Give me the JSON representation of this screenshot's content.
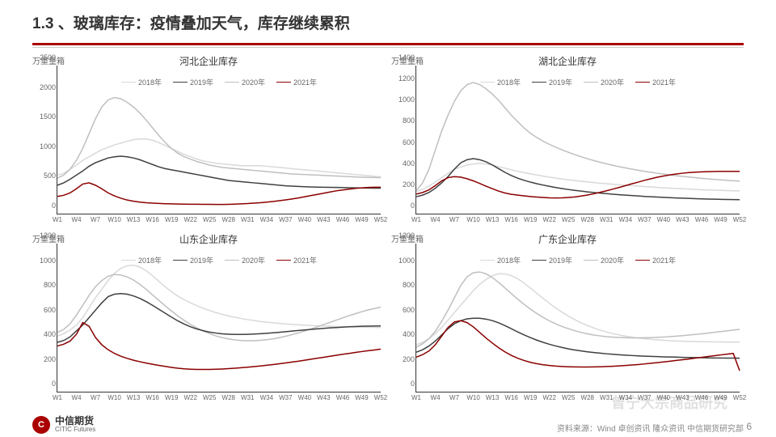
{
  "header": {
    "title": "1.3 、玻璃库存：疫情叠加天气，库存继续累积"
  },
  "legend_labels": [
    "2018年",
    "2019年",
    "2020年",
    "2021年"
  ],
  "series_colors": {
    "y2018": "#d9d9d9",
    "y2019": "#404040",
    "y2020": "#bfbfbf",
    "y2021": "#8b0000"
  },
  "line_width": 1.5,
  "x_ticks": [
    "W1",
    "W4",
    "W7",
    "W10",
    "W13",
    "W16",
    "W19",
    "W22",
    "W25",
    "W28",
    "W31",
    "W34",
    "W37",
    "W40",
    "W43",
    "W46",
    "W49",
    "W52"
  ],
  "charts": [
    {
      "title": "河北企业库存",
      "y_label": "万重量箱",
      "ymin": 0,
      "ymax": 2500,
      "y_step": 500,
      "series": {
        "y2018": [
          650,
          680,
          750,
          820,
          900,
          960,
          1020,
          1080,
          1120,
          1160,
          1190,
          1220,
          1250,
          1260,
          1260,
          1240,
          1200,
          1150,
          1100,
          1050,
          1000,
          960,
          920,
          890,
          870,
          850,
          840,
          830,
          820,
          810,
          810,
          810,
          810,
          800,
          790,
          780,
          770,
          760,
          750,
          740,
          730,
          720,
          710,
          700,
          690,
          680,
          670,
          660,
          650,
          640,
          630,
          620
        ],
        "y2019": [
          480,
          520,
          580,
          650,
          720,
          800,
          860,
          900,
          940,
          960,
          970,
          960,
          940,
          910,
          870,
          830,
          790,
          760,
          740,
          720,
          700,
          680,
          660,
          640,
          620,
          600,
          580,
          560,
          550,
          540,
          530,
          520,
          510,
          500,
          490,
          480,
          470,
          465,
          460,
          455,
          450,
          448,
          446,
          444,
          442,
          440,
          438,
          436,
          434,
          432,
          430,
          430
        ],
        "y2020": [
          600,
          650,
          750,
          900,
          1100,
          1350,
          1600,
          1800,
          1920,
          1960,
          1940,
          1880,
          1800,
          1700,
          1580,
          1450,
          1320,
          1200,
          1100,
          1020,
          960,
          920,
          880,
          850,
          820,
          800,
          780,
          770,
          760,
          750,
          740,
          730,
          720,
          710,
          700,
          690,
          680,
          670,
          665,
          660,
          655,
          650,
          645,
          640,
          635,
          630,
          625,
          620,
          615,
          612,
          610,
          608
        ],
        "y2021": [
          290,
          310,
          350,
          420,
          500,
          520,
          480,
          420,
          350,
          300,
          260,
          230,
          210,
          195,
          185,
          178,
          172,
          168,
          165,
          162,
          160,
          159,
          158,
          157,
          157,
          156,
          156,
          157,
          160,
          165,
          170,
          178,
          185,
          195,
          205,
          218,
          232,
          248,
          265,
          285,
          305,
          325,
          345,
          365,
          385,
          400,
          414,
          426,
          436,
          442,
          445,
          445
        ]
      }
    },
    {
      "title": "湖北企业库存",
      "y_label": "万重量箱",
      "ymin": 0,
      "ymax": 1400,
      "y_step": 200,
      "series": {
        "y2018": [
          210,
          230,
          260,
          300,
          340,
          380,
          420,
          440,
          460,
          470,
          475,
          470,
          460,
          445,
          430,
          415,
          400,
          388,
          376,
          365,
          355,
          345,
          336,
          328,
          320,
          313,
          306,
          300,
          294,
          288,
          283,
          278,
          273,
          268,
          264,
          260,
          256,
          252,
          248,
          244,
          241,
          238,
          235,
          232,
          229,
          226,
          224,
          222,
          220,
          218,
          216,
          215
        ],
        "y2019": [
          160,
          175,
          200,
          240,
          290,
          350,
          420,
          480,
          510,
          520,
          510,
          490,
          460,
          425,
          390,
          360,
          335,
          315,
          298,
          283,
          270,
          258,
          247,
          237,
          228,
          220,
          213,
          206,
          200,
          194,
          189,
          184,
          179,
          175,
          171,
          167,
          163,
          160,
          157,
          154,
          151,
          148,
          146,
          144,
          142,
          140,
          138,
          137,
          135,
          134,
          133,
          132
        ],
        "y2020": [
          220,
          290,
          420,
          600,
          780,
          930,
          1060,
          1160,
          1220,
          1240,
          1220,
          1180,
          1130,
          1070,
          1000,
          930,
          870,
          810,
          760,
          720,
          685,
          655,
          628,
          603,
          580,
          558,
          538,
          519,
          502,
          486,
          471,
          457,
          444,
          432,
          421,
          410,
          400,
          391,
          382,
          374,
          366,
          359,
          352,
          346,
          340,
          334,
          329,
          324,
          319,
          315,
          311,
          308
        ],
        "y2021": [
          185,
          200,
          225,
          265,
          310,
          340,
          350,
          345,
          330,
          310,
          285,
          260,
          236,
          213,
          195,
          183,
          175,
          168,
          162,
          157,
          153,
          149,
          148,
          149,
          153,
          158,
          166,
          176,
          188,
          202,
          216,
          232,
          248,
          265,
          282,
          298,
          315,
          330,
          344,
          356,
          366,
          375,
          382,
          388,
          392,
          395,
          397,
          399,
          400,
          400,
          400,
          400
        ]
      }
    },
    {
      "title": "山东企业库存",
      "y_label": "万重量箱",
      "ymin": 0,
      "ymax": 1200,
      "y_step": 200,
      "series": {
        "y2018": [
          450,
          470,
          500,
          540,
          600,
          680,
          760,
          830,
          900,
          960,
          1000,
          1020,
          1025,
          1010,
          980,
          940,
          895,
          850,
          810,
          775,
          745,
          720,
          697,
          676,
          658,
          641,
          627,
          614,
          603,
          593,
          584,
          576,
          569,
          563,
          558,
          553,
          549,
          545,
          542,
          539,
          536,
          534,
          532,
          530,
          528,
          527,
          525,
          524,
          523,
          522,
          521,
          520
        ],
        "y2019": [
          400,
          415,
          444,
          492,
          540,
          600,
          660,
          720,
          770,
          790,
          795,
          790,
          776,
          756,
          730,
          700,
          668,
          636,
          604,
          574,
          548,
          526,
          508,
          494,
          483,
          475,
          469,
          466,
          464,
          464,
          465,
          467,
          470,
          473,
          477,
          481,
          486,
          491,
          496,
          500,
          505,
          509,
          513,
          517,
          520,
          523,
          526,
          528,
          530,
          531,
          532,
          533
        ],
        "y2020": [
          480,
          505,
          550,
          620,
          700,
          780,
          850,
          900,
          935,
          950,
          945,
          930,
          905,
          870,
          830,
          785,
          740,
          696,
          654,
          614,
          578,
          545,
          516,
          491,
          470,
          452,
          438,
          427,
          420,
          415,
          413,
          413,
          416,
          421,
          428,
          438,
          449,
          462,
          476,
          492,
          508,
          526,
          544,
          562,
          580,
          598,
          616,
          632,
          648,
          662,
          674,
          685
        ],
        "y2021": [
          370,
          385,
          410,
          465,
          560,
          530,
          440,
          380,
          340,
          310,
          287,
          270,
          255,
          243,
          232,
          222,
          213,
          205,
          197,
          190,
          185,
          182,
          180,
          180,
          180,
          182,
          184,
          187,
          190,
          194,
          198,
          203,
          208,
          214,
          220,
          226,
          233,
          240,
          247,
          255,
          263,
          271,
          279,
          287,
          295,
          303,
          310,
          318,
          325,
          332,
          338,
          345
        ]
      }
    },
    {
      "title": "广东企业库存",
      "y_label": "万重量箱",
      "ymin": 0,
      "ymax": 1200,
      "y_step": 200,
      "series": {
        "y2018": [
          380,
          400,
          430,
          470,
          520,
          580,
          640,
          700,
          760,
          820,
          870,
          910,
          940,
          955,
          955,
          940,
          915,
          880,
          840,
          798,
          756,
          716,
          678,
          644,
          612,
          584,
          558,
          536,
          516,
          499,
          484,
          471,
          460,
          450,
          442,
          435,
          429,
          424,
          420,
          416,
          413,
          411,
          409,
          407,
          406,
          405,
          404,
          403,
          403,
          402,
          402,
          402
        ],
        "y2019": [
          320,
          340,
          370,
          410,
          460,
          510,
          550,
          575,
          590,
          595,
          595,
          588,
          576,
          558,
          535,
          510,
          484,
          460,
          438,
          418,
          400,
          384,
          370,
          358,
          347,
          338,
          330,
          323,
          317,
          312,
          307,
          303,
          299,
          296,
          293,
          290,
          288,
          286,
          284,
          282,
          281,
          280,
          278,
          277,
          276,
          275,
          274,
          273,
          273,
          272,
          272,
          271
        ],
        "y2020": [
          360,
          388,
          430,
          490,
          570,
          660,
          760,
          860,
          930,
          965,
          970,
          955,
          925,
          885,
          840,
          795,
          750,
          708,
          669,
          634,
          602,
          574,
          550,
          528,
          510,
          494,
          480,
          469,
          459,
          452,
          446,
          442,
          439,
          437,
          436,
          436,
          437,
          438,
          440,
          443,
          446,
          450,
          454,
          459,
          464,
          469,
          475,
          481,
          487,
          493,
          499,
          505
        ],
        "y2021": [
          280,
          300,
          330,
          380,
          450,
          520,
          565,
          575,
          560,
          525,
          480,
          435,
          394,
          356,
          322,
          294,
          271,
          253,
          238,
          227,
          218,
          212,
          207,
          204,
          202,
          201,
          200,
          200,
          201,
          202,
          204,
          206,
          209,
          212,
          216,
          220,
          225,
          230,
          235,
          241,
          247,
          253,
          259,
          265,
          272,
          278,
          285,
          291,
          298,
          304,
          310,
          170
        ]
      }
    }
  ],
  "footer": {
    "logo_cn": "中信期货",
    "logo_en": "CITIC Futures",
    "source": "资料来源：Wind 卓创资讯 隆众资讯 中信期货研究部",
    "page": "6",
    "watermark": "曾宁大宗商品研究"
  }
}
